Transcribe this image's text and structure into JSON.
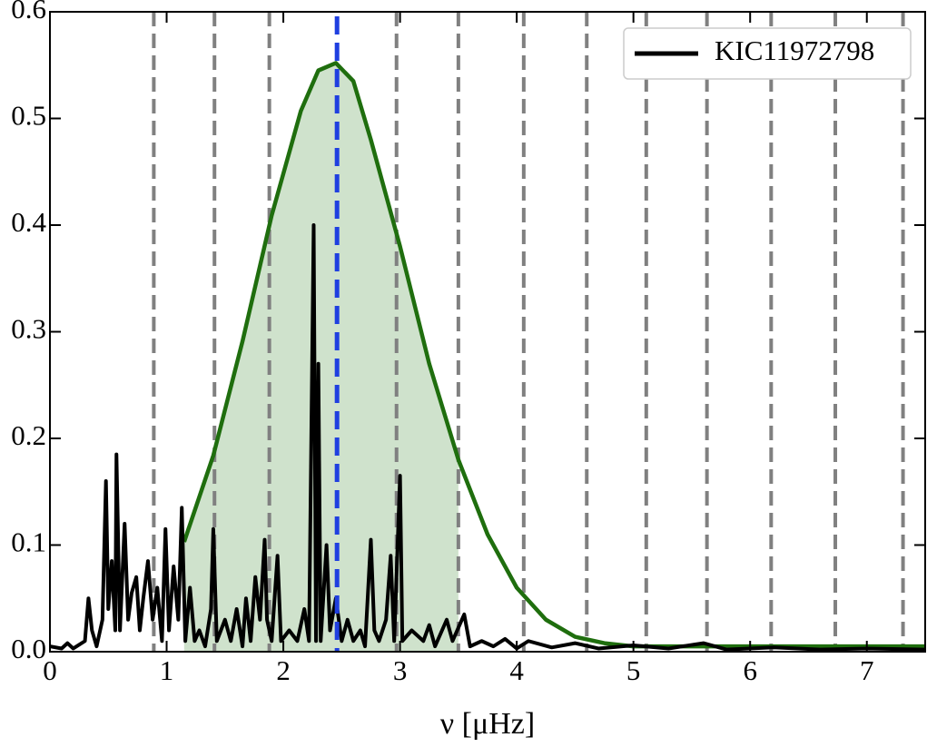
{
  "chart_data": {
    "type": "line",
    "xlabel": "ν [μHz]",
    "xlim": [
      0,
      7.5
    ],
    "ylim": [
      0,
      0.6
    ],
    "xticks": [
      0,
      1,
      2,
      3,
      4,
      5,
      6,
      7
    ],
    "yticks": [
      {
        "value": 0,
        "label": "0.0"
      },
      {
        "value": 0.1,
        "label": "0.1"
      },
      {
        "value": 0.2,
        "label": "0.2"
      },
      {
        "value": 0.3,
        "label": "0.3"
      },
      {
        "value": 0.4,
        "label": "0.4"
      },
      {
        "value": 0.5,
        "label": "0.5"
      },
      {
        "value": 0.6,
        "label": "0.6"
      }
    ],
    "legend": "upper right",
    "vlines": {
      "color": "#808080",
      "values": [
        0.89,
        1.41,
        1.88,
        2.97,
        3.5,
        4.06,
        4.6,
        5.11,
        5.63,
        6.18,
        6.73,
        7.31
      ]
    },
    "marker_line": {
      "color": "#1f3fe0",
      "value": 2.46
    },
    "series": [
      {
        "color": "#1f6e0e",
        "fill": {
          "color": "#cfe2cc",
          "range": [
            1.15,
            3.5
          ]
        },
        "x": [
          1.15,
          1.4,
          1.65,
          1.9,
          2.15,
          2.3,
          2.45,
          2.6,
          2.75,
          3.0,
          3.25,
          3.5,
          3.75,
          4.0,
          4.25,
          4.5,
          4.75,
          5.0,
          6.0,
          7.0,
          7.5
        ],
        "values": [
          0.103,
          0.184,
          0.291,
          0.409,
          0.507,
          0.545,
          0.552,
          0.535,
          0.48,
          0.38,
          0.27,
          0.18,
          0.11,
          0.06,
          0.03,
          0.014,
          0.008,
          0.005,
          0.005,
          0.005,
          0.005
        ]
      },
      {
        "name": "KIC11972798",
        "color": "#000000",
        "x": [
          0,
          0.1,
          0.15,
          0.2,
          0.3,
          0.33,
          0.36,
          0.4,
          0.45,
          0.48,
          0.5,
          0.53,
          0.56,
          0.57,
          0.6,
          0.64,
          0.67,
          0.7,
          0.74,
          0.77,
          0.8,
          0.84,
          0.88,
          0.92,
          0.96,
          0.99,
          1.02,
          1.06,
          1.1,
          1.13,
          1.16,
          1.2,
          1.24,
          1.28,
          1.33,
          1.38,
          1.4,
          1.43,
          1.5,
          1.55,
          1.6,
          1.65,
          1.68,
          1.72,
          1.76,
          1.8,
          1.84,
          1.86,
          1.9,
          1.95,
          1.98,
          2.05,
          2.12,
          2.18,
          2.22,
          2.26,
          2.28,
          2.3,
          2.32,
          2.37,
          2.4,
          2.45,
          2.5,
          2.55,
          2.6,
          2.66,
          2.7,
          2.75,
          2.78,
          2.82,
          2.88,
          2.92,
          2.95,
          3.0,
          3.02,
          3.1,
          3.2,
          3.25,
          3.3,
          3.4,
          3.45,
          3.55,
          3.6,
          3.7,
          3.8,
          3.9,
          4.0,
          4.1,
          4.3,
          4.5,
          4.7,
          5.0,
          5.3,
          5.6,
          5.8,
          6.2,
          6.6,
          7.0,
          7.5
        ],
        "values": [
          0.005,
          0.003,
          0.008,
          0.003,
          0.01,
          0.05,
          0.02,
          0.005,
          0.03,
          0.16,
          0.04,
          0.085,
          0.02,
          0.185,
          0.02,
          0.12,
          0.03,
          0.055,
          0.07,
          0.02,
          0.05,
          0.085,
          0.03,
          0.06,
          0.01,
          0.115,
          0.02,
          0.08,
          0.03,
          0.135,
          0.01,
          0.06,
          0.01,
          0.02,
          0.005,
          0.04,
          0.115,
          0.01,
          0.03,
          0.01,
          0.04,
          0.005,
          0.05,
          0.01,
          0.07,
          0.03,
          0.105,
          0.03,
          0.01,
          0.09,
          0.01,
          0.02,
          0.01,
          0.04,
          0.01,
          0.4,
          0.01,
          0.27,
          0.01,
          0.1,
          0.02,
          0.05,
          0.01,
          0.03,
          0.01,
          0.02,
          0.005,
          0.105,
          0.02,
          0.01,
          0.03,
          0.09,
          0.01,
          0.165,
          0.01,
          0.02,
          0.01,
          0.025,
          0.005,
          0.03,
          0.01,
          0.035,
          0.005,
          0.01,
          0.005,
          0.012,
          0.003,
          0.01,
          0.004,
          0.008,
          0.003,
          0.006,
          0.003,
          0.008,
          0.002,
          0.004,
          0.002,
          0.003,
          0.002
        ]
      }
    ]
  }
}
